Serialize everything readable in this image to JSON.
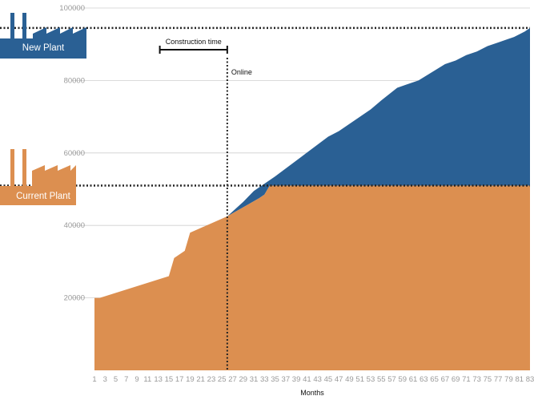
{
  "chart_data": {
    "type": "area",
    "xlabel": "Months",
    "ylabel": "",
    "ylim": [
      0,
      100000
    ],
    "yticks": [
      20000,
      40000,
      60000,
      80000,
      100000
    ],
    "xticks": [
      1,
      3,
      5,
      7,
      9,
      11,
      13,
      15,
      17,
      19,
      21,
      23,
      25,
      27,
      29,
      31,
      33,
      35,
      37,
      39,
      41,
      43,
      45,
      47,
      49,
      51,
      53,
      55,
      57,
      59,
      61,
      63,
      65,
      67,
      69,
      71,
      73,
      75,
      77,
      79,
      81,
      83
    ],
    "grid": true,
    "series": [
      {
        "name": "Current Plant",
        "color": "#dc8f50",
        "x": [
          1,
          2,
          15,
          16,
          18,
          19,
          26,
          32,
          33,
          34,
          83
        ],
        "y": [
          20000,
          20000,
          26000,
          31000,
          33000,
          38000,
          42500,
          47500,
          48500,
          51000,
          51000
        ]
      },
      {
        "name": "New Plant",
        "color": "#2a6094",
        "x": [
          26,
          29,
          31,
          35,
          40,
          45,
          47,
          53,
          55,
          58,
          60,
          62,
          67,
          69,
          71,
          73,
          75,
          77,
          79,
          80,
          82,
          83
        ],
        "y": [
          42500,
          46500,
          49500,
          53500,
          59000,
          64500,
          66000,
          72000,
          74500,
          78000,
          79000,
          80000,
          84500,
          85500,
          87000,
          88000,
          89500,
          90500,
          91500,
          92000,
          93500,
          94500
        ]
      }
    ],
    "reference_lines": [
      {
        "axis": "y",
        "value": 94500
      },
      {
        "axis": "y",
        "value": 51000
      },
      {
        "axis": "x",
        "value": 26
      }
    ],
    "annotations": {
      "construction_label": "Construction time",
      "construction_range": [
        13.3,
        26
      ],
      "construction_y": 88500,
      "online_label": "Online"
    }
  },
  "legend": {
    "new_plant": {
      "label": "New Plant",
      "color": "#2a6094",
      "icon": "factory-icon"
    },
    "current_plant": {
      "label": "Current Plant",
      "color": "#dc8f50",
      "icon": "factory-icon"
    }
  }
}
